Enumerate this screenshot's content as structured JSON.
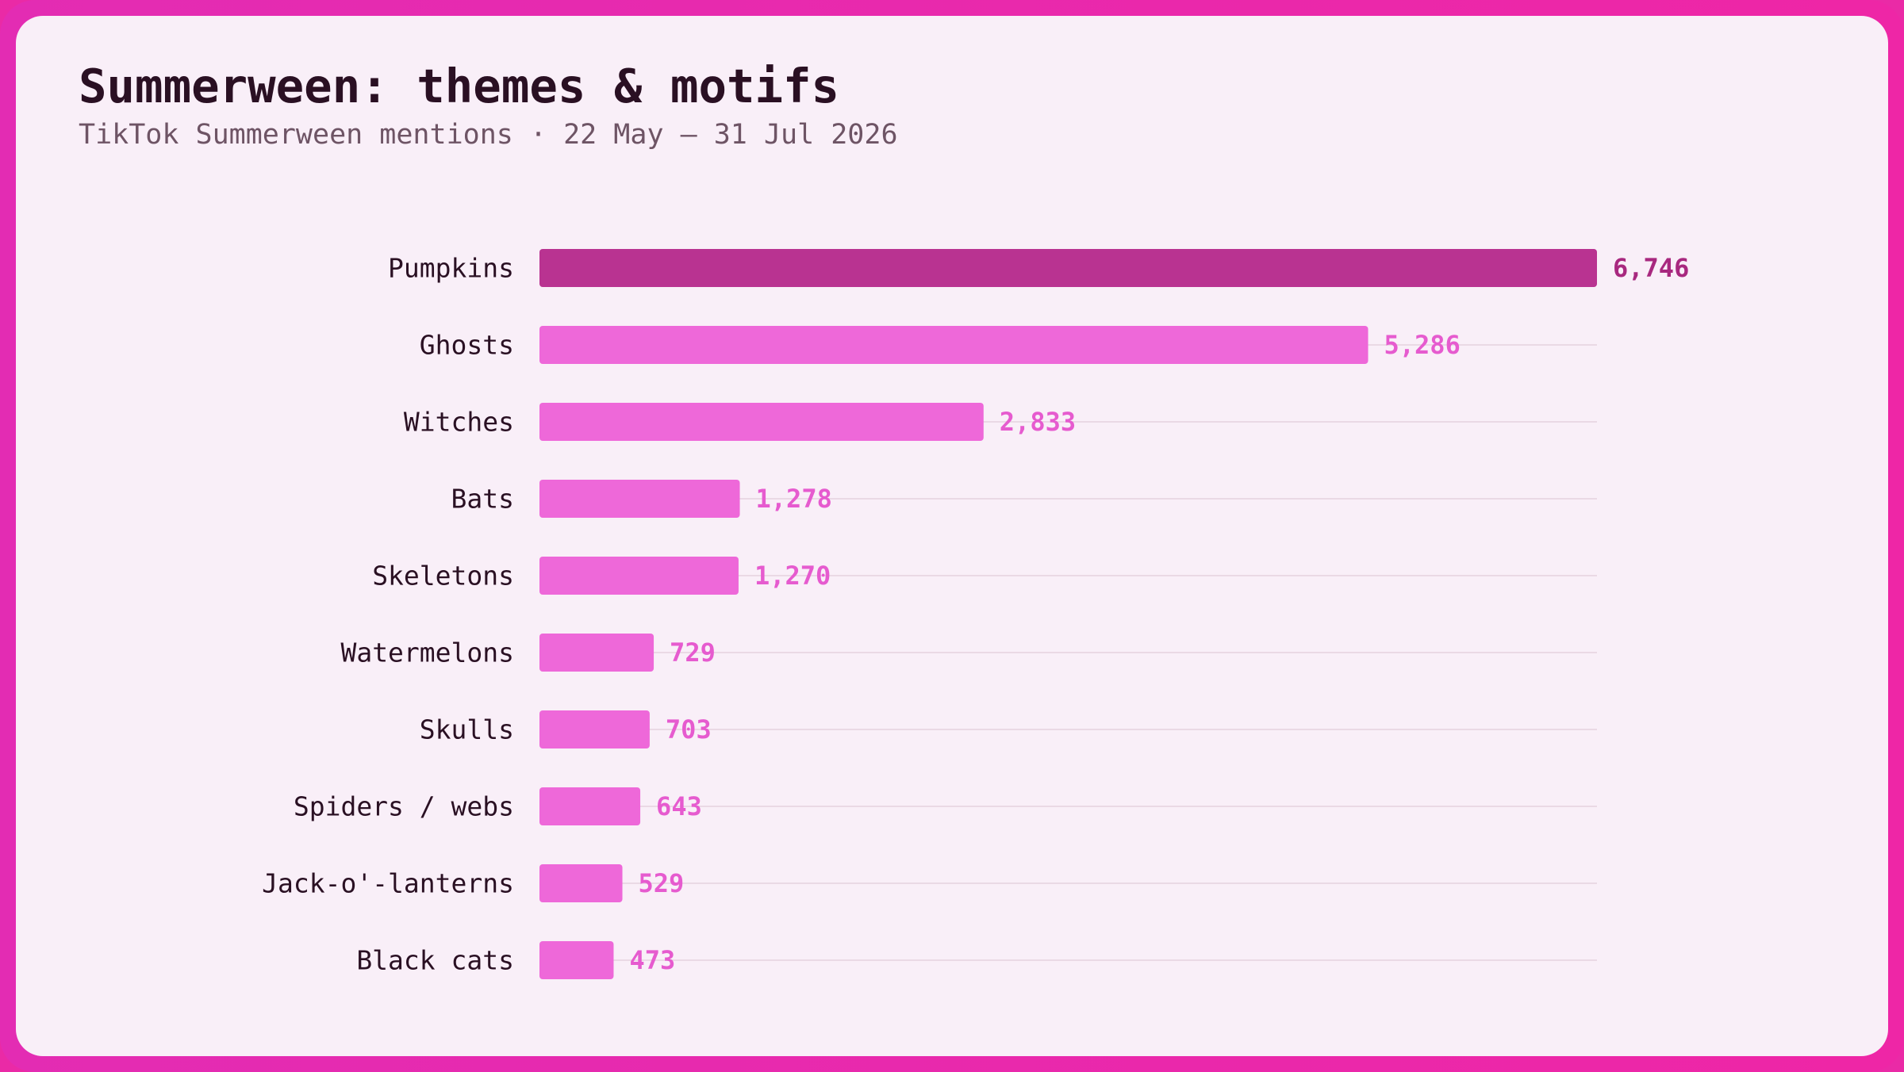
{
  "colors": {
    "border": "#e92aa9",
    "background": "#f9eff8",
    "highlight_bar": "#b93391",
    "bar": "#ee68d9",
    "highlight_label": "#a8287f",
    "value_label": "#e65bcf",
    "category_label": "#2a1023",
    "gridline": "#ead9e5"
  },
  "chart_data": {
    "type": "bar",
    "orientation": "horizontal",
    "title": "Summerween: themes & motifs",
    "subtitle": "TikTok Summerween mentions · 22 May – 31 Jul 2026",
    "categories": [
      "Pumpkins",
      "Ghosts",
      "Witches",
      "Bats",
      "Skeletons",
      "Watermelons",
      "Skulls",
      "Spiders / webs",
      "Jack-o'-lanterns",
      "Black cats"
    ],
    "values": [
      6746,
      5286,
      2833,
      1278,
      1270,
      729,
      703,
      643,
      529,
      473
    ],
    "value_labels": [
      "6,746",
      "5,286",
      "2,833",
      "1,278",
      "1,270",
      "729",
      "703",
      "643",
      "529",
      "473"
    ],
    "highlighted": "Pumpkins",
    "xlim": [
      0,
      6746
    ],
    "grid": true,
    "legend": "none",
    "xlabel": "",
    "ylabel": ""
  }
}
